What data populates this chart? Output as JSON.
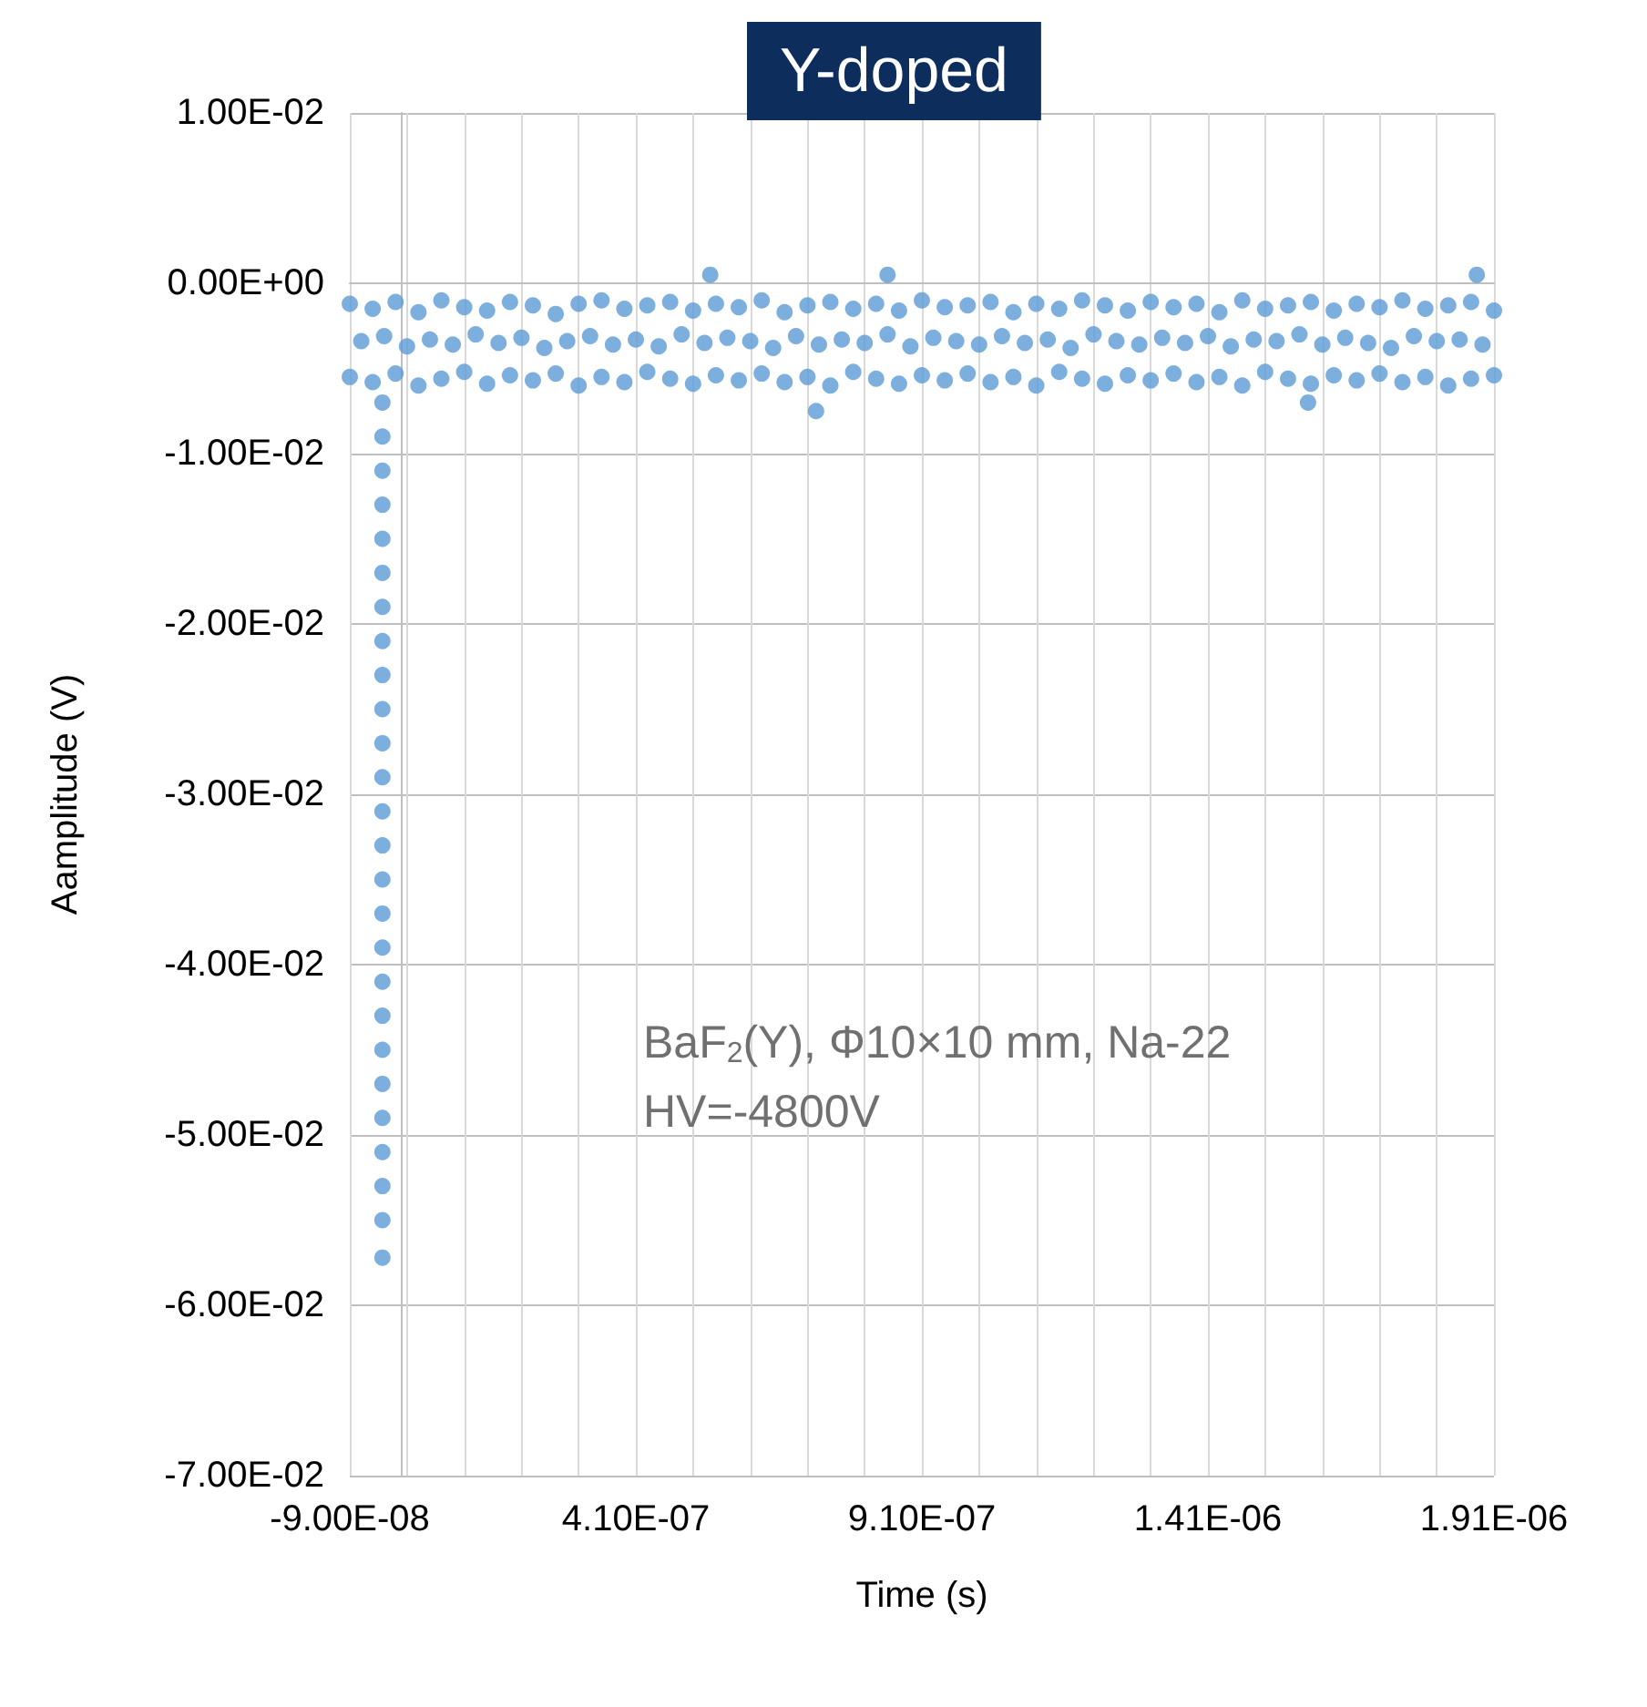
{
  "chart_data": {
    "type": "scatter",
    "title": "Y-doped",
    "xlabel": "Time (s)",
    "ylabel": "Aamplitude (V)",
    "annotations": [
      "BaF$_{2}$(Y), Φ10×10 mm, Na-22",
      "HV=-4800V"
    ],
    "xlim": [
      -9e-08,
      1.91e-06
    ],
    "xticks": [
      {
        "value": -9e-08,
        "label": "-9.00E-08"
      },
      {
        "value": 1e-08,
        "label": null
      },
      {
        "value": 1.1e-07,
        "label": null
      },
      {
        "value": 2.1e-07,
        "label": null
      },
      {
        "value": 3.1e-07,
        "label": null
      },
      {
        "value": 4.1e-07,
        "label": "4.10E-07"
      },
      {
        "value": 5.1e-07,
        "label": null
      },
      {
        "value": 6.1e-07,
        "label": null
      },
      {
        "value": 7.1e-07,
        "label": null
      },
      {
        "value": 8.1e-07,
        "label": null
      },
      {
        "value": 9.1e-07,
        "label": "9.10E-07"
      },
      {
        "value": 1.01e-06,
        "label": null
      },
      {
        "value": 1.11e-06,
        "label": null
      },
      {
        "value": 1.21e-06,
        "label": null
      },
      {
        "value": 1.31e-06,
        "label": null
      },
      {
        "value": 1.41e-06,
        "label": "1.41E-06"
      },
      {
        "value": 1.51e-06,
        "label": null
      },
      {
        "value": 1.61e-06,
        "label": null
      },
      {
        "value": 1.71e-06,
        "label": null
      },
      {
        "value": 1.81e-06,
        "label": null
      },
      {
        "value": 1.91e-06,
        "label": "1.91E-06"
      }
    ],
    "ylim": [
      -0.07,
      0.01
    ],
    "yticks": [
      {
        "value": -0.07,
        "label": "-7.00E-02"
      },
      {
        "value": -0.06,
        "label": "-6.00E-02"
      },
      {
        "value": -0.05,
        "label": "-5.00E-02"
      },
      {
        "value": -0.04,
        "label": "-4.00E-02"
      },
      {
        "value": -0.03,
        "label": "-3.00E-02"
      },
      {
        "value": -0.02,
        "label": "-2.00E-02"
      },
      {
        "value": -0.01,
        "label": "-1.00E-02"
      },
      {
        "value": 0,
        "label": "0.00E+00"
      },
      {
        "value": 0.01,
        "label": "1.00E-02"
      }
    ],
    "grid": true,
    "marker": "circle",
    "series": [
      {
        "color": "#5b9bd5",
        "x": [
          -9e-08,
          -5e-08,
          -1e-08,
          3e-08,
          7e-08,
          1.1e-07,
          1.5e-07,
          1.9e-07,
          2.3e-07,
          2.7e-07,
          3.1e-07,
          3.5e-07,
          3.9e-07,
          4.3e-07,
          4.7e-07,
          5.1e-07,
          5.5e-07,
          5.9e-07,
          6.3e-07,
          6.7e-07,
          7.1e-07,
          7.5e-07,
          7.9e-07,
          8.3e-07,
          8.7e-07,
          9.1e-07,
          9.5e-07,
          9.9e-07,
          1.03e-06,
          1.07e-06,
          1.11e-06,
          1.15e-06,
          1.19e-06,
          1.23e-06,
          1.27e-06,
          1.31e-06,
          1.35e-06,
          1.39e-06,
          1.43e-06,
          1.47e-06,
          1.51e-06,
          1.55e-06,
          1.59e-06,
          1.63e-06,
          1.67e-06,
          1.71e-06,
          1.75e-06,
          1.79e-06,
          1.83e-06,
          1.87e-06,
          1.91e-06,
          -7e-08,
          -3e-08,
          1e-08,
          5e-08,
          9e-08,
          1.3e-07,
          1.7e-07,
          2.1e-07,
          2.5e-07,
          2.9e-07,
          3.3e-07,
          3.7e-07,
          4.1e-07,
          4.5e-07,
          4.9e-07,
          5.3e-07,
          5.7e-07,
          6.1e-07,
          6.5e-07,
          6.9e-07,
          7.3e-07,
          7.7e-07,
          8.1e-07,
          8.5e-07,
          8.9e-07,
          9.3e-07,
          9.7e-07,
          1.01e-06,
          1.05e-06,
          1.09e-06,
          1.13e-06,
          1.17e-06,
          1.21e-06,
          1.25e-06,
          1.29e-06,
          1.33e-06,
          1.37e-06,
          1.41e-06,
          1.45e-06,
          1.49e-06,
          1.53e-06,
          1.57e-06,
          1.61e-06,
          1.65e-06,
          1.69e-06,
          1.73e-06,
          1.77e-06,
          1.81e-06,
          1.85e-06,
          1.89e-06,
          -9e-08,
          -5e-08,
          -1e-08,
          3e-08,
          7e-08,
          1.1e-07,
          1.5e-07,
          1.9e-07,
          2.3e-07,
          2.7e-07,
          3.1e-07,
          3.5e-07,
          3.9e-07,
          4.3e-07,
          4.7e-07,
          5.1e-07,
          5.5e-07,
          5.9e-07,
          6.3e-07,
          6.7e-07,
          7.1e-07,
          7.5e-07,
          7.9e-07,
          8.3e-07,
          8.7e-07,
          9.1e-07,
          9.5e-07,
          9.9e-07,
          1.03e-06,
          1.07e-06,
          1.11e-06,
          1.15e-06,
          1.19e-06,
          1.23e-06,
          1.27e-06,
          1.31e-06,
          1.35e-06,
          1.39e-06,
          1.43e-06,
          1.47e-06,
          1.51e-06,
          1.55e-06,
          1.59e-06,
          1.63e-06,
          1.67e-06,
          1.71e-06,
          1.75e-06,
          1.79e-06,
          1.83e-06,
          1.87e-06,
          1.91e-06,
          -3.3e-08,
          -3.3e-08,
          -3.3e-08,
          -3.3e-08,
          -3.3e-08,
          -3.3e-08,
          -3.3e-08,
          -3.3e-08,
          -3.3e-08,
          -3.3e-08,
          -3.3e-08,
          -3.3e-08,
          -3.3e-08,
          -3.3e-08,
          -3.3e-08,
          -3.3e-08,
          -3.3e-08,
          -3.3e-08,
          -3.3e-08,
          -3.3e-08,
          -3.3e-08,
          -3.3e-08,
          -3.3e-08,
          -3.3e-08,
          -3.3e-08,
          -3.3e-08,
          7.25e-07,
          1.585e-06,
          5.4e-07,
          8.5e-07,
          1.88e-06
        ],
        "values": [
          -0.0012,
          -0.0015,
          -0.0011,
          -0.0017,
          -0.001,
          -0.0014,
          -0.0016,
          -0.0011,
          -0.0013,
          -0.0018,
          -0.0012,
          -0.001,
          -0.0015,
          -0.0013,
          -0.0011,
          -0.0016,
          -0.0012,
          -0.0014,
          -0.001,
          -0.0017,
          -0.0013,
          -0.0011,
          -0.0015,
          -0.0012,
          -0.0016,
          -0.001,
          -0.0014,
          -0.0013,
          -0.0011,
          -0.0017,
          -0.0012,
          -0.0015,
          -0.001,
          -0.0013,
          -0.0016,
          -0.0011,
          -0.0014,
          -0.0012,
          -0.0017,
          -0.001,
          -0.0015,
          -0.0013,
          -0.0011,
          -0.0016,
          -0.0012,
          -0.0014,
          -0.001,
          -0.0015,
          -0.0013,
          -0.0011,
          -0.0016,
          -0.0034,
          -0.0031,
          -0.0037,
          -0.0033,
          -0.0036,
          -0.003,
          -0.0035,
          -0.0032,
          -0.0038,
          -0.0034,
          -0.0031,
          -0.0036,
          -0.0033,
          -0.0037,
          -0.003,
          -0.0035,
          -0.0032,
          -0.0034,
          -0.0038,
          -0.0031,
          -0.0036,
          -0.0033,
          -0.0035,
          -0.003,
          -0.0037,
          -0.0032,
          -0.0034,
          -0.0036,
          -0.0031,
          -0.0035,
          -0.0033,
          -0.0038,
          -0.003,
          -0.0034,
          -0.0036,
          -0.0032,
          -0.0035,
          -0.0031,
          -0.0037,
          -0.0033,
          -0.0034,
          -0.003,
          -0.0036,
          -0.0032,
          -0.0035,
          -0.0038,
          -0.0031,
          -0.0034,
          -0.0033,
          -0.0036,
          -0.0055,
          -0.0058,
          -0.0053,
          -0.006,
          -0.0056,
          -0.0052,
          -0.0059,
          -0.0054,
          -0.0057,
          -0.0053,
          -0.006,
          -0.0055,
          -0.0058,
          -0.0052,
          -0.0056,
          -0.0059,
          -0.0054,
          -0.0057,
          -0.0053,
          -0.0058,
          -0.0055,
          -0.006,
          -0.0052,
          -0.0056,
          -0.0059,
          -0.0054,
          -0.0057,
          -0.0053,
          -0.0058,
          -0.0055,
          -0.006,
          -0.0052,
          -0.0056,
          -0.0059,
          -0.0054,
          -0.0057,
          -0.0053,
          -0.0058,
          -0.0055,
          -0.006,
          -0.0052,
          -0.0056,
          -0.0059,
          -0.0054,
          -0.0057,
          -0.0053,
          -0.0058,
          -0.0055,
          -0.006,
          -0.0056,
          -0.0054,
          -0.007,
          -0.009,
          -0.011,
          -0.013,
          -0.015,
          -0.017,
          -0.019,
          -0.021,
          -0.023,
          -0.025,
          -0.027,
          -0.029,
          -0.031,
          -0.033,
          -0.035,
          -0.037,
          -0.039,
          -0.041,
          -0.043,
          -0.045,
          -0.047,
          -0.049,
          -0.051,
          -0.053,
          -0.055,
          -0.0572,
          -0.0075,
          -0.007,
          0.0005,
          0.0005,
          0.0005
        ]
      }
    ]
  }
}
